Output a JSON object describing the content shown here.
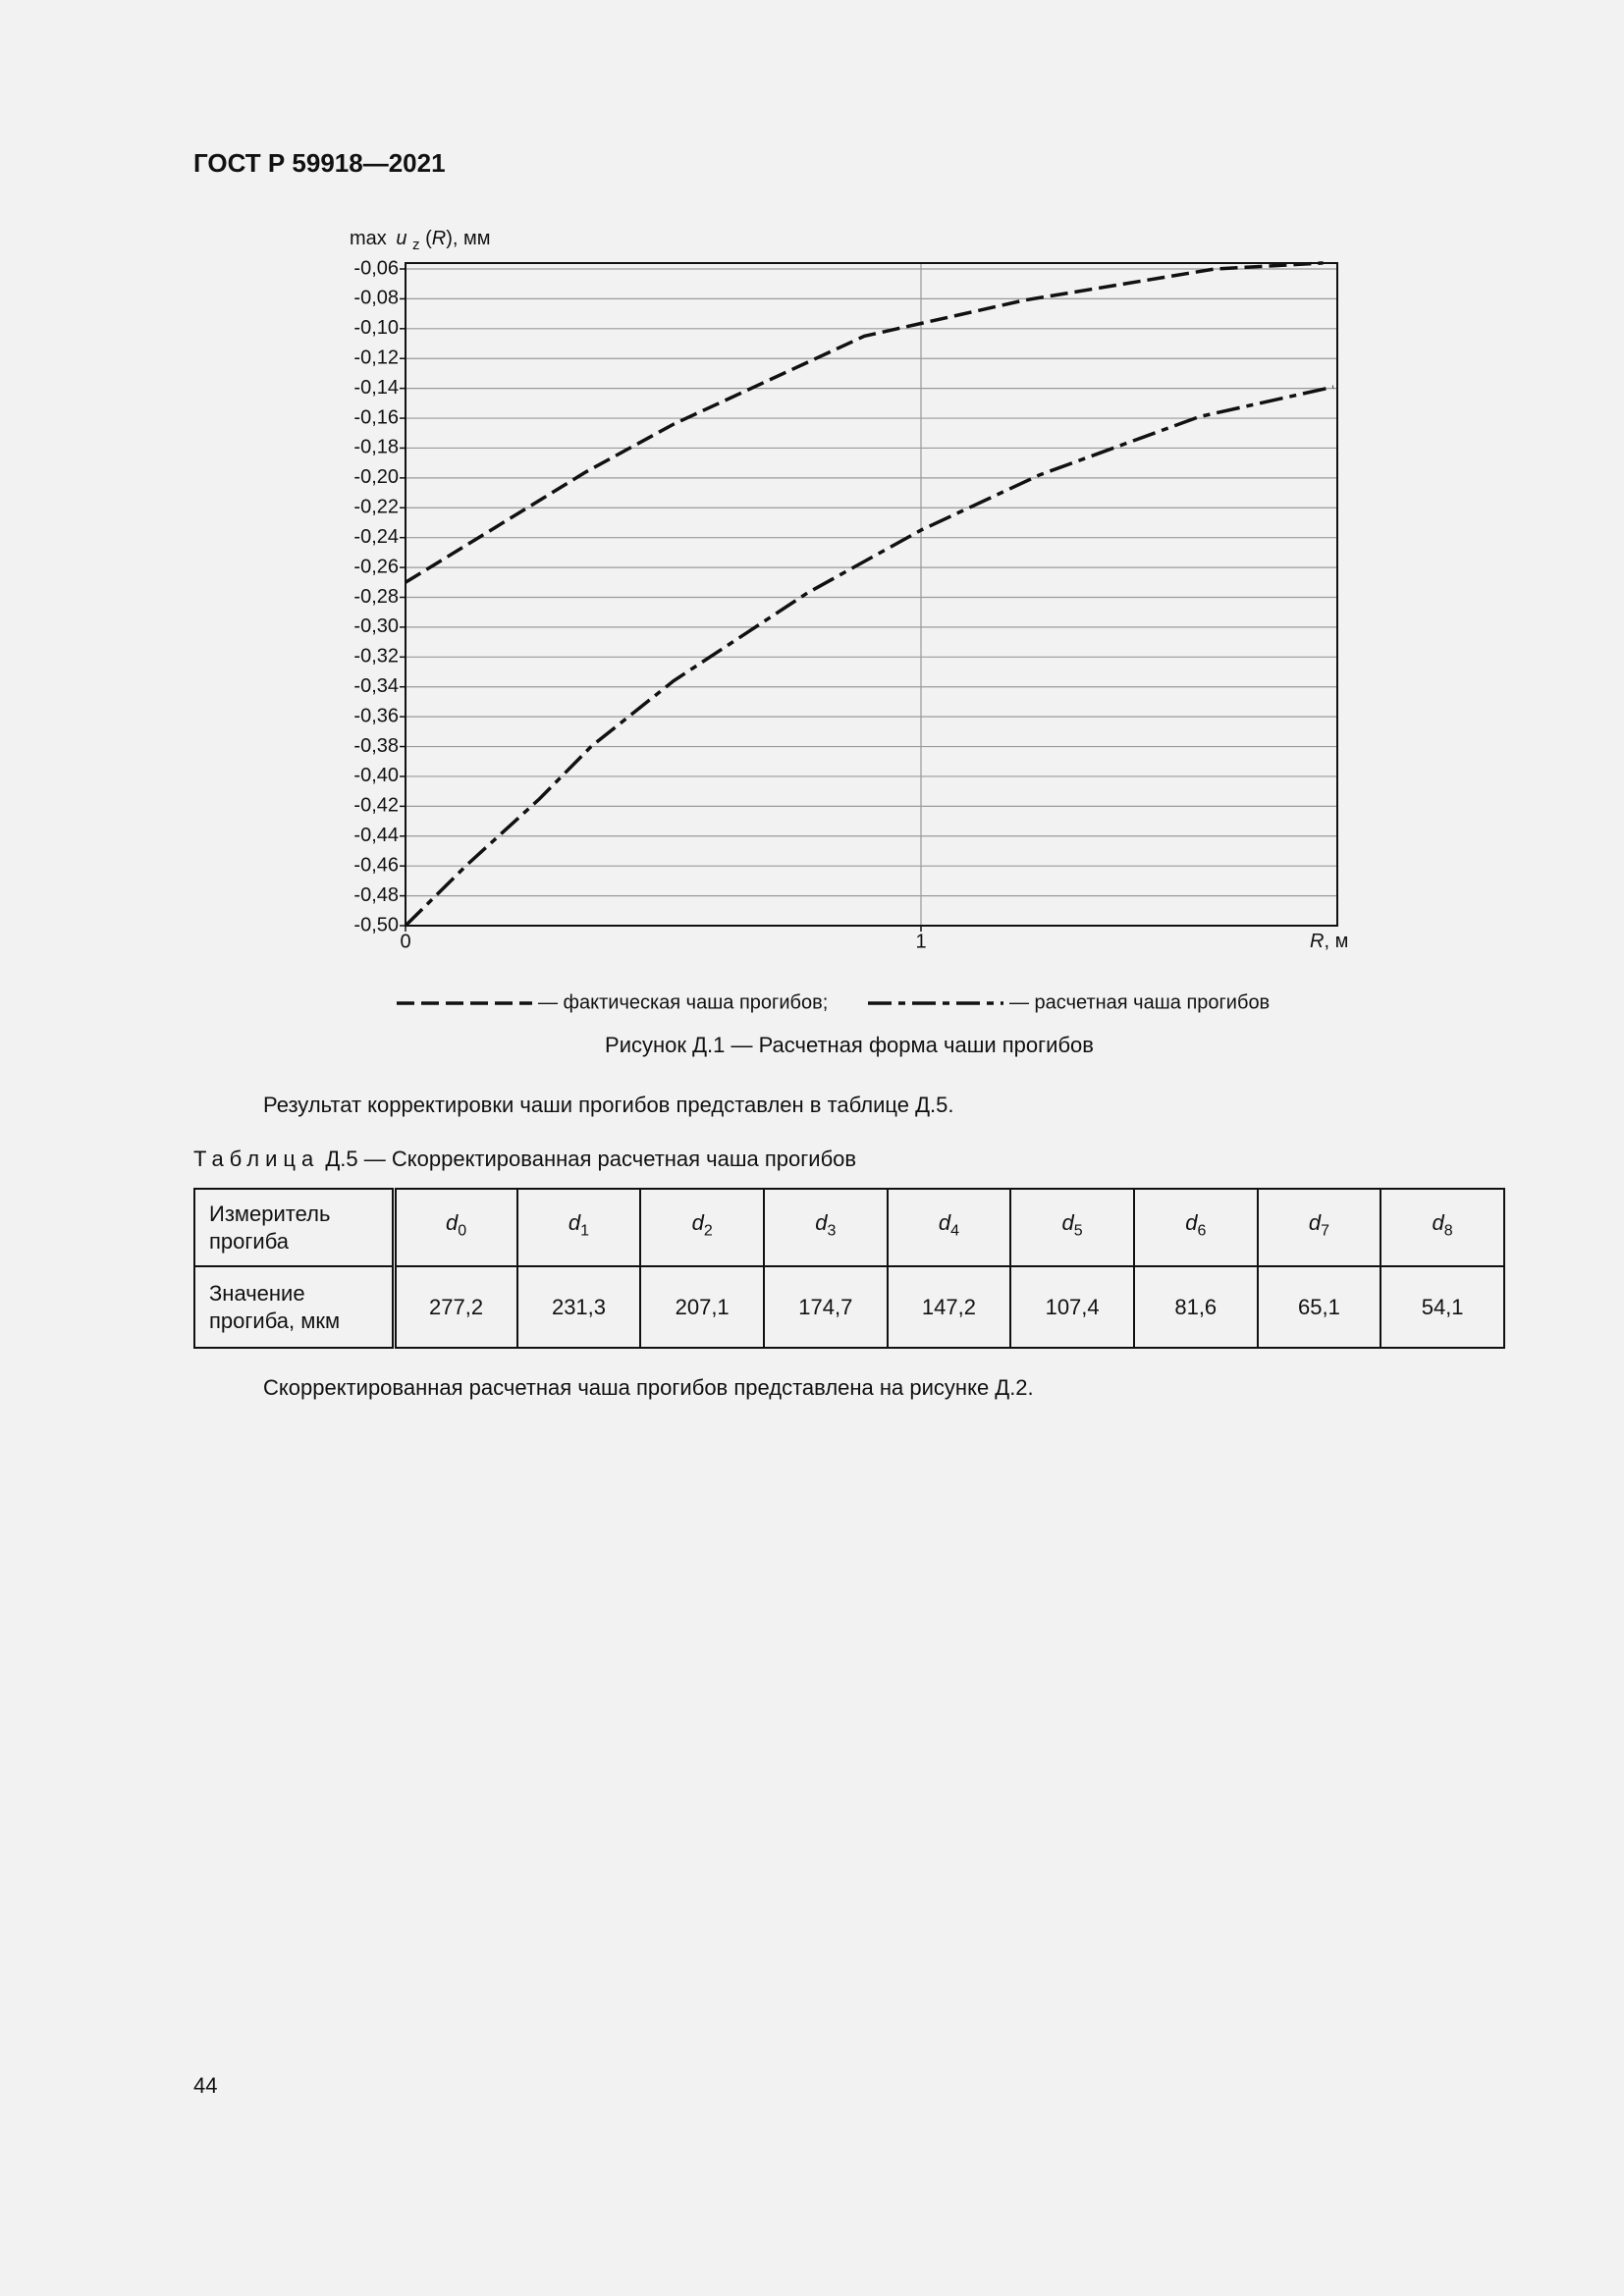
{
  "header": {
    "title": "ГОСТ Р 59918—2021"
  },
  "chart_data": {
    "type": "line",
    "y_label": [
      "max",
      "u",
      "z",
      "(",
      "R",
      "), мм"
    ],
    "x_label": [
      "R",
      ", м"
    ],
    "xlim": [
      0,
      1.8
    ],
    "xticks": [
      0,
      1
    ],
    "ylim": [
      -0.5,
      -0.06
    ],
    "yticks": [
      {
        "value": -0.06,
        "label": "-0,06"
      },
      {
        "value": -0.08,
        "label": "-0,08"
      },
      {
        "value": -0.1,
        "label": "-0,10"
      },
      {
        "value": -0.12,
        "label": "-0,12"
      },
      {
        "value": -0.14,
        "label": "-0,14"
      },
      {
        "value": -0.16,
        "label": "-0,16"
      },
      {
        "value": -0.18,
        "label": "-0,18"
      },
      {
        "value": -0.2,
        "label": "-0,20"
      },
      {
        "value": -0.22,
        "label": "-0,22"
      },
      {
        "value": -0.24,
        "label": "-0,24"
      },
      {
        "value": -0.26,
        "label": "-0,26"
      },
      {
        "value": -0.28,
        "label": "-0,28"
      },
      {
        "value": -0.3,
        "label": "-0,30"
      },
      {
        "value": -0.32,
        "label": "-0,32"
      },
      {
        "value": -0.34,
        "label": "-0,34"
      },
      {
        "value": -0.36,
        "label": "-0,36"
      },
      {
        "value": -0.38,
        "label": "-0,38"
      },
      {
        "value": -0.4,
        "label": "-0,40"
      },
      {
        "value": -0.42,
        "label": "-0,42"
      },
      {
        "value": -0.44,
        "label": "-0,44"
      },
      {
        "value": -0.46,
        "label": "-0,46"
      },
      {
        "value": -0.48,
        "label": "-0,48"
      },
      {
        "value": -0.5,
        "label": "-0,50"
      }
    ],
    "grid": true,
    "series": [
      {
        "name": "— фактическая чаша прогибов;",
        "color": "#111111",
        "dash": "dashed",
        "x": [
          0,
          0.35,
          0.52,
          0.89,
          1.2,
          1.57,
          1.78
        ],
        "values": [
          -0.27,
          -0.196,
          -0.164,
          -0.105,
          -0.081,
          -0.06,
          -0.056
        ]
      },
      {
        "name": "— расчетная чаша прогибов",
        "color": "#111111",
        "dash": "dashdot",
        "x": [
          0,
          0.12,
          0.26,
          0.36,
          0.52,
          0.78,
          1.0,
          1.23,
          1.54,
          1.8
        ],
        "values": [
          -0.5,
          -0.459,
          -0.415,
          -0.38,
          -0.336,
          -0.277,
          -0.235,
          -0.198,
          -0.159,
          -0.139
        ]
      }
    ],
    "caption": "Рисунок Д.1 — Расчетная форма чаши прогибов"
  },
  "paragraph1": "Результат корректировки чаши прогибов представлен в таблице Д.5.",
  "table_title": {
    "label": "Таблица",
    "text": "Д.5 — Скорректированная расчетная чаша прогибов"
  },
  "table": {
    "header": {
      "label": "Измеритель прогиба",
      "cells": [
        {
          "var": "d",
          "sub": "0"
        },
        {
          "var": "d",
          "sub": "1"
        },
        {
          "var": "d",
          "sub": "2"
        },
        {
          "var": "d",
          "sub": "3"
        },
        {
          "var": "d",
          "sub": "4"
        },
        {
          "var": "d",
          "sub": "5"
        },
        {
          "var": "d",
          "sub": "6"
        },
        {
          "var": "d",
          "sub": "7"
        },
        {
          "var": "d",
          "sub": "8"
        }
      ]
    },
    "rows": [
      {
        "label": "Значение прогиба, мкм",
        "cells": [
          "277,2",
          "231,3",
          "207,1",
          "174,7",
          "147,2",
          "107,4",
          "81,6",
          "65,1",
          "54,1"
        ]
      }
    ]
  },
  "paragraph2": "Скорректированная расчетная чаша прогибов представлена на рисунке Д.2.",
  "page_number": "44"
}
